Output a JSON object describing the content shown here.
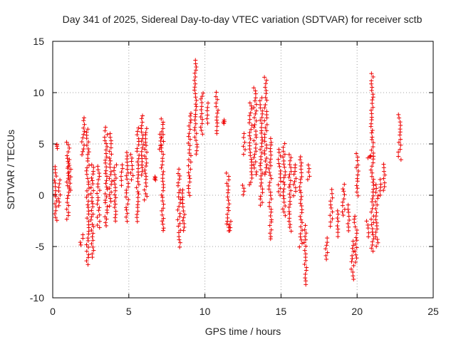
{
  "chart_data": {
    "type": "scatter",
    "title": "Day 341 of 2025, Sidereal Day-to-day VTEC variation (SDTVAR) for receiver sctb",
    "xlabel": "GPS time / hours",
    "ylabel": "SDTVAR / TECUs",
    "xlim": [
      0,
      25
    ],
    "ylim": [
      -10,
      15
    ],
    "xticks": [
      0,
      5,
      10,
      15,
      20,
      25
    ],
    "yticks": [
      -10,
      -5,
      0,
      5,
      10,
      15
    ],
    "xtick_labels": [
      "0",
      "5",
      "10",
      "15",
      "20",
      "25"
    ],
    "ytick_labels": [
      "-10",
      "-5",
      "0",
      "5",
      "10",
      "15"
    ],
    "grid": true,
    "marker": "plus",
    "series": [
      {
        "name": "sctb",
        "color": "#ee0000",
        "clusters": [
          {
            "x": 0.2,
            "ylo": -2.5,
            "yhi": 2.8
          },
          {
            "x": 0.3,
            "ylo": 4.6,
            "yhi": 5.0
          },
          {
            "x": 0.45,
            "ylo": -1.0,
            "yhi": 1.5
          },
          {
            "x": 1.0,
            "ylo": -2.3,
            "yhi": 5.2
          },
          {
            "x": 1.1,
            "ylo": 0.5,
            "yhi": 3.5
          },
          {
            "x": 1.9,
            "ylo": -4.9,
            "yhi": -3.8
          },
          {
            "x": 2.0,
            "ylo": 3.9,
            "yhi": 7.6
          },
          {
            "x": 2.3,
            "ylo": -6.7,
            "yhi": 6.5
          },
          {
            "x": 2.6,
            "ylo": -6.0,
            "yhi": 3.0
          },
          {
            "x": 3.0,
            "ylo": -3.2,
            "yhi": 2.8
          },
          {
            "x": 3.5,
            "ylo": -3.0,
            "yhi": 6.6
          },
          {
            "x": 3.8,
            "ylo": -1.0,
            "yhi": 6.0
          },
          {
            "x": 4.1,
            "ylo": -2.5,
            "yhi": 3.0
          },
          {
            "x": 4.5,
            "ylo": 1.0,
            "yhi": 3.0
          },
          {
            "x": 4.9,
            "ylo": -2.5,
            "yhi": 4.2
          },
          {
            "x": 5.2,
            "ylo": 1.5,
            "yhi": 4.0
          },
          {
            "x": 5.6,
            "ylo": -2.5,
            "yhi": 6.5
          },
          {
            "x": 5.9,
            "ylo": 2.0,
            "yhi": 7.8
          },
          {
            "x": 6.1,
            "ylo": -0.5,
            "yhi": 6.5
          },
          {
            "x": 6.7,
            "ylo": 1.5,
            "yhi": 1.8
          },
          {
            "x": 7.1,
            "ylo": 4.5,
            "yhi": 6.0
          },
          {
            "x": 7.2,
            "ylo": -3.5,
            "yhi": 7.5
          },
          {
            "x": 8.3,
            "ylo": -5.0,
            "yhi": 2.5
          },
          {
            "x": 8.6,
            "ylo": -3.5,
            "yhi": 0.5
          },
          {
            "x": 9.0,
            "ylo": 0.0,
            "yhi": 8.0
          },
          {
            "x": 9.4,
            "ylo": 4.0,
            "yhi": 13.2
          },
          {
            "x": 9.8,
            "ylo": 6.0,
            "yhi": 10.0
          },
          {
            "x": 10.2,
            "ylo": 7.0,
            "yhi": 9.0
          },
          {
            "x": 10.8,
            "ylo": 6.0,
            "yhi": 10.0
          },
          {
            "x": 11.2,
            "ylo": 7.0,
            "yhi": 7.3
          },
          {
            "x": 11.5,
            "ylo": -3.5,
            "yhi": 2.2
          },
          {
            "x": 11.7,
            "ylo": -3.5,
            "yhi": -2.5
          },
          {
            "x": 12.5,
            "ylo": 0.0,
            "yhi": 1.0
          },
          {
            "x": 12.6,
            "ylo": 4.0,
            "yhi": 6.0
          },
          {
            "x": 13.0,
            "ylo": 1.0,
            "yhi": 9.0
          },
          {
            "x": 13.3,
            "ylo": 2.0,
            "yhi": 10.5
          },
          {
            "x": 13.7,
            "ylo": -1.0,
            "yhi": 9.5
          },
          {
            "x": 14.0,
            "ylo": 2.0,
            "yhi": 11.5
          },
          {
            "x": 14.3,
            "ylo": -4.3,
            "yhi": 5.5
          },
          {
            "x": 14.9,
            "ylo": 0.0,
            "yhi": 4.5
          },
          {
            "x": 15.2,
            "ylo": -2.0,
            "yhi": 5.0
          },
          {
            "x": 15.6,
            "ylo": -3.5,
            "yhi": 4.0
          },
          {
            "x": 15.9,
            "ylo": 0.0,
            "yhi": 3.0
          },
          {
            "x": 16.3,
            "ylo": -5.0,
            "yhi": 3.8
          },
          {
            "x": 16.6,
            "ylo": -8.7,
            "yhi": -3.0
          },
          {
            "x": 16.8,
            "ylo": 1.5,
            "yhi": 3.0
          },
          {
            "x": 18.0,
            "ylo": -6.3,
            "yhi": -4.2
          },
          {
            "x": 18.3,
            "ylo": -3.0,
            "yhi": 0.5
          },
          {
            "x": 18.7,
            "ylo": -4.0,
            "yhi": -1.5
          },
          {
            "x": 19.1,
            "ylo": -2.0,
            "yhi": 1.0
          },
          {
            "x": 19.4,
            "ylo": -3.5,
            "yhi": -1.0
          },
          {
            "x": 19.7,
            "ylo": -8.2,
            "yhi": -4.5
          },
          {
            "x": 19.9,
            "ylo": -6.5,
            "yhi": -2.0
          },
          {
            "x": 20.0,
            "ylo": 0.0,
            "yhi": 4.0
          },
          {
            "x": 20.7,
            "ylo": -4.0,
            "yhi": -2.5
          },
          {
            "x": 20.8,
            "ylo": 3.6,
            "yhi": 3.9
          },
          {
            "x": 21.0,
            "ylo": -5.5,
            "yhi": 11.8
          },
          {
            "x": 21.3,
            "ylo": -5.0,
            "yhi": 1.0
          },
          {
            "x": 21.5,
            "ylo": 0.0,
            "yhi": 1.5
          },
          {
            "x": 21.8,
            "ylo": 0.5,
            "yhi": 3.0
          },
          {
            "x": 22.8,
            "ylo": 3.5,
            "yhi": 7.8
          }
        ]
      }
    ]
  }
}
